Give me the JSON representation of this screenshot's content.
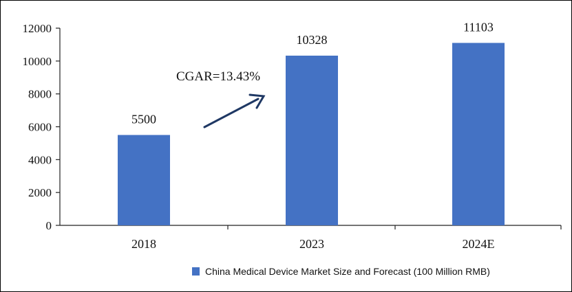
{
  "chart_data": {
    "type": "bar",
    "title": "",
    "xlabel": "",
    "ylabel": "",
    "categories": [
      "2018",
      "2023",
      "2024E"
    ],
    "series": [
      {
        "name": "China Medical Device Market Size and Forecast (100 Million RMB)",
        "values": [
          5500,
          10328,
          11103
        ],
        "color": "#4472c4"
      }
    ],
    "data_labels": [
      "5500",
      "10328",
      "11103"
    ],
    "ylim": [
      0,
      12000
    ],
    "yticks": [
      0,
      2000,
      4000,
      6000,
      8000,
      10000,
      12000
    ],
    "grid": false,
    "legend_position": "bottom-center",
    "annotation": {
      "text": "CGAR=13.43%",
      "arrow": true,
      "arrow_color": "#1f3864"
    }
  }
}
